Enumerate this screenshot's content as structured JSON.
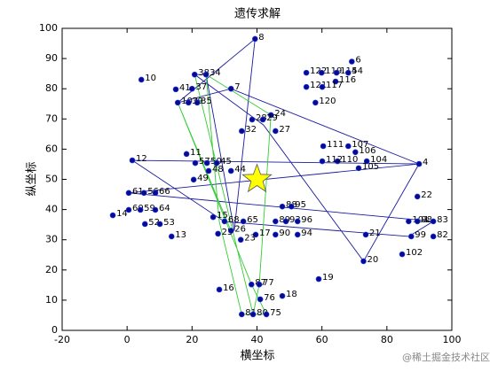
{
  "chart_data": {
    "type": "scatter",
    "title": "遗传求解",
    "x_label": "横坐标",
    "y_label": "纵坐标",
    "xlim": [
      -20,
      100
    ],
    "xticks": [
      -20,
      0,
      20,
      40,
      60,
      80,
      100
    ],
    "ylim": [
      0,
      100
    ],
    "yticks": [
      0,
      10,
      20,
      30,
      40,
      50,
      60,
      70,
      80,
      90,
      100
    ],
    "point_color": "#0a0a8c",
    "points": {
      "labels": [
        "8",
        "10",
        "6",
        "38",
        "34",
        "122",
        "119",
        "114",
        "54",
        "116",
        "121",
        "117",
        "41",
        "37",
        "7",
        "120",
        "103",
        "39",
        "35",
        "24",
        "28",
        "29",
        "32",
        "27",
        "111",
        "107",
        "106",
        "104",
        "110",
        "112",
        "105",
        "4",
        "12",
        "11",
        "57",
        "50",
        "45",
        "44",
        "48",
        "49",
        "22",
        "61",
        "56",
        "66",
        "88",
        "95",
        "14",
        "60",
        "59",
        "64",
        "52",
        "53",
        "13",
        "15",
        "65",
        "68",
        "89",
        "93",
        "96",
        "17",
        "90",
        "94",
        "101",
        "98",
        "83",
        "99",
        "82",
        "21",
        "20",
        "102",
        "19",
        "18",
        "16",
        "87",
        "77",
        "76",
        "81",
        "80",
        "75",
        "25",
        "26",
        "23"
      ],
      "x": [
        39.4,
        4.4,
        69.2,
        20.8,
        24.3,
        55.2,
        59.9,
        64.5,
        68.1,
        64.2,
        55.2,
        60.1,
        15,
        20,
        32,
        58,
        15.6,
        18.9,
        21.6,
        44.3,
        38.5,
        41.8,
        35.3,
        45.7,
        60.4,
        68.1,
        70.3,
        73.8,
        64.8,
        60.1,
        71.3,
        89.9,
        1.6,
        18.3,
        21,
        24.6,
        27.6,
        32,
        25.1,
        20.5,
        89.4,
        0.5,
        5.2,
        8.7,
        47.8,
        50.6,
        -4.4,
        0.5,
        4.1,
        8.7,
        5.5,
        10.1,
        13.7,
        26.5,
        35.8,
        30,
        45.7,
        48.9,
        52.5,
        39.6,
        45.7,
        52.5,
        86.7,
        89.4,
        94.3,
        87.5,
        94.3,
        73.5,
        72.8,
        84.7,
        59,
        47.8,
        28.4,
        38.3,
        40.7,
        41,
        35.3,
        38.8,
        42.9,
        28,
        32,
        35
      ],
      "y": [
        96.5,
        83,
        89,
        84.7,
        84.7,
        85.3,
        85.3,
        85.3,
        85.3,
        82.4,
        80.6,
        80.6,
        79.8,
        80,
        80,
        75.4,
        75.4,
        75.4,
        75.4,
        71.3,
        69.8,
        69.8,
        66,
        66,
        61,
        61,
        59,
        56,
        56,
        56,
        53.7,
        55.1,
        56.3,
        58.4,
        55.4,
        55.4,
        55.4,
        52.8,
        52.8,
        49.9,
        44.3,
        45.5,
        45.5,
        45.5,
        41,
        41,
        38.1,
        39.9,
        39.9,
        39.9,
        35.2,
        35.2,
        31.1,
        37.5,
        36.1,
        36.1,
        36.1,
        36.1,
        36.1,
        31.7,
        31.7,
        31.7,
        36.1,
        36.1,
        36.1,
        31.1,
        31.1,
        31.7,
        22.9,
        25.2,
        17,
        11.4,
        13.5,
        15.2,
        15.2,
        10.3,
        5.3,
        5.3,
        5.3,
        32,
        33,
        30
      ]
    },
    "routes": [
      {
        "color": "#1a1aa0",
        "x": [
          1.6,
          89.9,
          32,
          15.6,
          39.4,
          33,
          24.3,
          20.8,
          42,
          72.8,
          89.9,
          0.5,
          94.3,
          86.7,
          30,
          1.6
        ],
        "y": [
          56.3,
          55.1,
          80,
          75.4,
          96.5,
          33,
          84.7,
          84.7,
          68,
          22.9,
          55.1,
          45.5,
          36.1,
          31.1,
          36,
          56.3
        ]
      },
      {
        "color": "#33cc33",
        "x": [
          20.8,
          38.8,
          40.7,
          44.3,
          24.3,
          28.4,
          35.3,
          42.9,
          38.3,
          15.6,
          32
        ],
        "y": [
          84.7,
          5.3,
          15.2,
          71.3,
          84.7,
          36,
          5.3,
          5.3,
          15.2,
          75.4,
          33
        ]
      }
    ],
    "best": {
      "x": 40,
      "y": 50,
      "color": "#ffff00"
    },
    "watermark": "@稀土掘金技术社区"
  }
}
